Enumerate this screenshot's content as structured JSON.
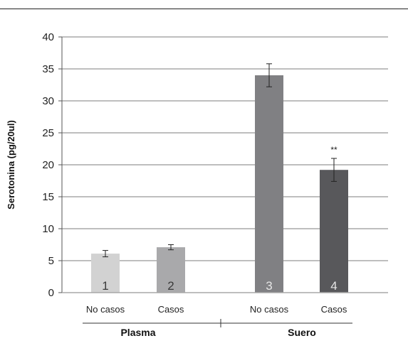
{
  "chart_data": {
    "type": "bar",
    "ylabel": "Serotonina (pg/20ul)",
    "ylim": [
      0,
      40
    ],
    "yticks": [
      0,
      5,
      10,
      15,
      20,
      25,
      30,
      35,
      40
    ],
    "grid": true,
    "categories": [
      "No casos",
      "Casos",
      "No casos",
      "Casos"
    ],
    "groups": [
      {
        "label": "Plasma",
        "bars": [
          0,
          1
        ]
      },
      {
        "label": "Suero",
        "bars": [
          2,
          3
        ]
      }
    ],
    "values": [
      6.1,
      7.1,
      34.0,
      19.2
    ],
    "errors": [
      0.5,
      0.4,
      1.8,
      1.8
    ],
    "bar_numbers": [
      "1",
      "2",
      "3",
      "4"
    ],
    "bar_colors": [
      "#d2d2d2",
      "#a9a9ab",
      "#808083",
      "#58585b"
    ],
    "annotations": [
      {
        "bar": 3,
        "text": "**"
      }
    ]
  }
}
